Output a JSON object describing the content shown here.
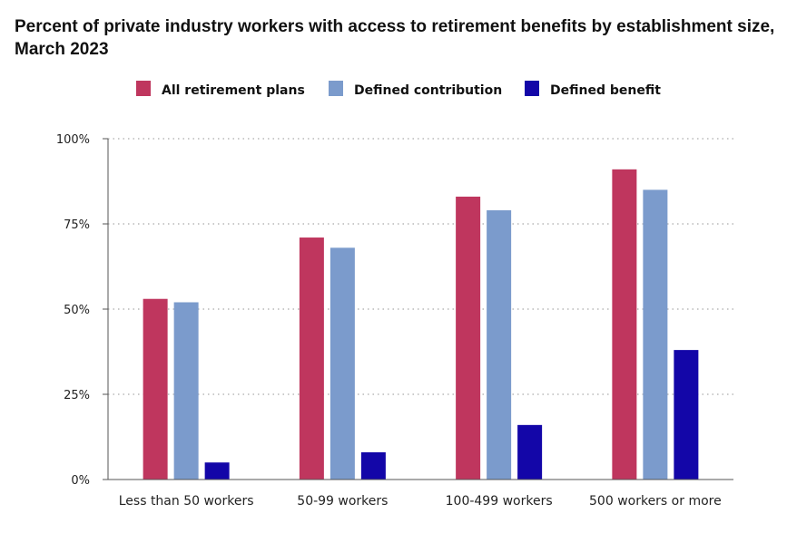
{
  "chart_data": {
    "type": "bar",
    "title": "Percent of private industry workers with access to retirement benefits by establishment size, March 2023",
    "categories": [
      "Less than 50 workers",
      "50-99 workers",
      "100-499 workers",
      "500 workers or more"
    ],
    "series": [
      {
        "name": "All retirement plans",
        "color": "#bf365e",
        "values": [
          53,
          71,
          83,
          91
        ]
      },
      {
        "name": "Defined contribution",
        "color": "#7b9bcc",
        "values": [
          52,
          68,
          79,
          85
        ]
      },
      {
        "name": "Defined benefit",
        "color": "#1306a8",
        "values": [
          5,
          8,
          16,
          38
        ]
      }
    ],
    "ylim": [
      0,
      100
    ],
    "yticks": [
      0,
      25,
      50,
      75,
      100
    ],
    "ytick_labels": [
      "0%",
      "25%",
      "50%",
      "75%",
      "100%"
    ],
    "grid": true,
    "legend_position": "top"
  }
}
